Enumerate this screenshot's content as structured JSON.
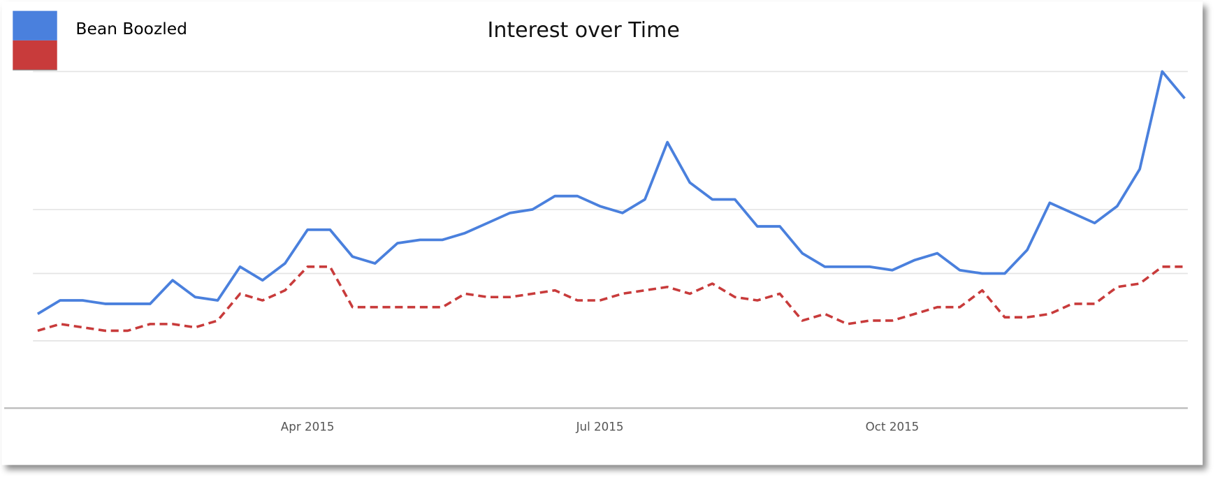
{
  "chart_data": {
    "type": "line",
    "title": "Interest over Time",
    "categories": [
      null,
      null,
      null,
      null,
      null,
      null,
      null,
      null,
      null,
      null,
      null,
      null,
      "Apr 2015",
      null,
      null,
      null,
      null,
      null,
      null,
      null,
      null,
      null,
      null,
      null,
      null,
      "Jul 2015",
      null,
      null,
      null,
      null,
      null,
      null,
      null,
      null,
      null,
      null,
      null,
      null,
      "Oct 2015",
      null,
      null,
      null,
      null,
      null,
      null,
      null,
      null,
      null,
      null,
      null,
      null,
      null
    ],
    "series": [
      {
        "name": "Bean Boozled",
        "color": "#4a80dd",
        "values": [
          28,
          32,
          32,
          31,
          31,
          31,
          38,
          33,
          32,
          42,
          38,
          43,
          53,
          53,
          45,
          43,
          49,
          50,
          50,
          52,
          55,
          58,
          59,
          63,
          63,
          60,
          58,
          62,
          79,
          67,
          62,
          62,
          54,
          54,
          46,
          42,
          42,
          42,
          41,
          44,
          46,
          41,
          40,
          40,
          47,
          61,
          58,
          55,
          60,
          71,
          100,
          92
        ]
      },
      {
        "color": "#c83b3b",
        "dashed": true,
        "values": [
          23,
          25,
          24,
          23,
          23,
          25,
          25,
          24,
          26,
          34,
          32,
          35,
          42,
          42,
          30,
          30,
          30,
          30,
          30,
          34,
          33,
          33,
          34,
          35,
          32,
          32,
          34,
          35,
          36,
          34,
          37,
          33,
          32,
          34,
          26,
          28,
          25,
          26,
          26,
          28,
          30,
          30,
          35,
          27,
          27,
          28,
          31,
          31,
          36,
          37,
          42,
          42
        ]
      }
    ],
    "ylim": [
      0,
      100
    ],
    "yticks": [
      20,
      40,
      59,
      100
    ],
    "grid": true
  }
}
